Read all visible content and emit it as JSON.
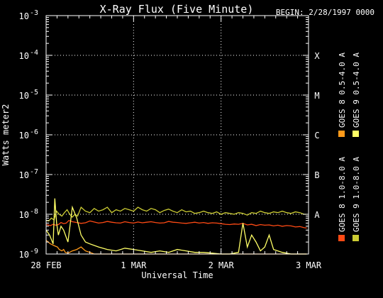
{
  "chart_data": {
    "type": "line",
    "title": "X-Ray Flux (Five Minute)",
    "begin": "BEGIN: 2/28/1997 0000",
    "ylabel": "Watts meter2",
    "xlabel": "Universal Time",
    "yscale": "log",
    "ylim": [
      1e-09,
      0.001
    ],
    "y_ticks": [
      {
        "base": "10",
        "exp": "-9"
      },
      {
        "base": "10",
        "exp": "-8"
      },
      {
        "base": "10",
        "exp": "-7"
      },
      {
        "base": "10",
        "exp": "-6"
      },
      {
        "base": "10",
        "exp": "-5"
      },
      {
        "base": "10",
        "exp": "-4"
      },
      {
        "base": "10",
        "exp": "-3"
      }
    ],
    "x_ticks": [
      "28 FEB",
      "1 MAR",
      "2 MAR",
      "3 MAR"
    ],
    "xlim": [
      "1997-02-28",
      "1997-03-03"
    ],
    "flare_classes": [
      {
        "label": "A",
        "value": 1e-08
      },
      {
        "label": "B",
        "value": 1e-07
      },
      {
        "label": "C",
        "value": 1e-06
      },
      {
        "label": "M",
        "value": 1e-05
      },
      {
        "label": "X",
        "value": 0.0001
      }
    ],
    "grid": "dotted",
    "series": [
      {
        "name": "GOES 8 1.0-8.0 A",
        "color": "#ff4a14",
        "x": [
          0,
          0.02,
          0.05,
          0.08,
          0.11,
          0.14,
          0.17,
          0.2,
          0.23,
          0.26,
          0.3,
          0.35,
          0.4,
          0.45,
          0.5,
          0.55,
          0.6,
          0.65,
          0.7,
          0.75,
          0.8,
          0.85,
          0.9,
          0.95,
          1.0,
          1.05,
          1.1,
          1.15,
          1.2,
          1.25,
          1.3,
          1.35,
          1.4,
          1.45,
          1.5,
          1.55,
          1.6,
          1.65,
          1.7,
          1.75,
          1.8,
          1.85,
          1.9,
          1.95,
          2.0,
          2.05,
          2.1,
          2.15,
          2.2,
          2.25,
          2.3,
          2.35,
          2.4,
          2.45,
          2.5,
          2.55,
          2.6,
          2.65,
          2.7,
          2.75,
          2.8,
          2.85,
          2.9,
          2.95,
          2.98
        ],
        "y": [
          5.5e-09,
          5.4e-09,
          5.2e-09,
          5.6e-09,
          5.3e-09,
          5.5e-09,
          6.2e-09,
          5.8e-09,
          6e-09,
          7e-09,
          6.5e-09,
          6.2e-09,
          5.9e-09,
          6.1e-09,
          6.8e-09,
          6.4e-09,
          6e-09,
          6.2e-09,
          6.6e-09,
          6.3e-09,
          6.1e-09,
          6e-09,
          6.5e-09,
          6.2e-09,
          6e-09,
          6.4e-09,
          6.1e-09,
          6.3e-09,
          6.5e-09,
          6.2e-09,
          6e-09,
          6.1e-09,
          6.6e-09,
          6.3e-09,
          6.2e-09,
          6e-09,
          5.9e-09,
          6.1e-09,
          6.3e-09,
          6e-09,
          6.2e-09,
          5.9e-09,
          6.1e-09,
          6e-09,
          5.8e-09,
          5.6e-09,
          5.5e-09,
          5.7e-09,
          5.6e-09,
          5.9e-09,
          5.4e-09,
          5.6e-09,
          5.2e-09,
          5.5e-09,
          5.3e-09,
          5.4e-09,
          5.1e-09,
          5.3e-09,
          5e-09,
          5.2e-09,
          5.1e-09,
          4.8e-09,
          4.9e-09,
          4.6e-09,
          4.5e-09
        ]
      },
      {
        "name": "GOES 8 0.5-4.0 A",
        "color": "#ff9a1a",
        "x": [
          0,
          0.05,
          0.1,
          0.13,
          0.15,
          0.18,
          0.2,
          0.22,
          0.25,
          0.3,
          0.35,
          0.4,
          0.45,
          0.5,
          0.55,
          0.6,
          0.7,
          0.8,
          0.9,
          1.0,
          1.1,
          1.2,
          1.3,
          1.4,
          1.5,
          1.6,
          1.7,
          1.8,
          1.9,
          2.0,
          2.1,
          2.2,
          2.3,
          2.4,
          2.5,
          2.6,
          2.7,
          2.8,
          2.9,
          2.98
        ],
        "y": [
          2.2e-09,
          1.8e-09,
          1.6e-09,
          1.5e-09,
          1.3e-09,
          1.2e-09,
          1.3e-09,
          1.1e-09,
          1.05e-09,
          1.2e-09,
          1.3e-09,
          1.5e-09,
          1.2e-09,
          1.1e-09,
          1e-09,
          1e-09,
          1e-09,
          1e-09,
          1e-09,
          1e-09,
          1e-09,
          1e-09,
          1e-09,
          1e-09,
          1e-09,
          1e-09,
          1e-09,
          1e-09,
          1e-09,
          1e-09,
          1e-09,
          1e-09,
          1e-09,
          1e-09,
          1e-09,
          1e-09,
          1e-09,
          1e-09,
          1e-09,
          1e-09
        ]
      },
      {
        "name": "GOES 9 1.0-8.0 A",
        "color": "#cccc33",
        "x": [
          0,
          0.03,
          0.06,
          0.09,
          0.12,
          0.15,
          0.18,
          0.21,
          0.24,
          0.27,
          0.3,
          0.33,
          0.36,
          0.4,
          0.45,
          0.5,
          0.55,
          0.6,
          0.65,
          0.7,
          0.75,
          0.8,
          0.85,
          0.9,
          0.95,
          1.0,
          1.05,
          1.1,
          1.15,
          1.2,
          1.25,
          1.3,
          1.35,
          1.4,
          1.45,
          1.5,
          1.55,
          1.6,
          1.65,
          1.7,
          1.75,
          1.8,
          1.85,
          1.9,
          1.95,
          2.0,
          2.05,
          2.1,
          2.15,
          2.2,
          2.25,
          2.3,
          2.35,
          2.4,
          2.45,
          2.5,
          2.55,
          2.6,
          2.65,
          2.7,
          2.75,
          2.8,
          2.85,
          2.9,
          2.95,
          2.98
        ],
        "y": [
          7e-09,
          6.8e-09,
          8e-09,
          7.2e-09,
          1.2e-08,
          1e-08,
          9e-09,
          1.1e-08,
          1.3e-08,
          1e-08,
          8.5e-09,
          1e-08,
          9e-09,
          1.5e-08,
          1.2e-08,
          1.1e-08,
          1.4e-08,
          1.2e-08,
          1.3e-08,
          1.5e-08,
          1.1e-08,
          1.3e-08,
          1.2e-08,
          1.4e-08,
          1.3e-08,
          1.2e-08,
          1.5e-08,
          1.3e-08,
          1.2e-08,
          1.4e-08,
          1.3e-08,
          1.1e-08,
          1.25e-08,
          1.35e-08,
          1.2e-08,
          1.1e-08,
          1.3e-08,
          1.15e-08,
          1.2e-08,
          1.05e-08,
          1.1e-08,
          1.2e-08,
          1.1e-08,
          1.05e-08,
          1.15e-08,
          1e-08,
          1.1e-08,
          1.05e-08,
          1e-08,
          1.1e-08,
          1.05e-08,
          9.5e-09,
          1.1e-08,
          1.05e-08,
          1.2e-08,
          1.1e-08,
          1.05e-08,
          1.15e-08,
          1.1e-08,
          1.2e-08,
          1.1e-08,
          1.05e-08,
          1.15e-08,
          1.1e-08,
          1e-08,
          1e-08
        ]
      },
      {
        "name": "GOES 9 0.5-4.0 A",
        "color": "#ffff66",
        "x": [
          0,
          0.04,
          0.08,
          0.1,
          0.12,
          0.14,
          0.17,
          0.2,
          0.25,
          0.3,
          0.35,
          0.4,
          0.45,
          0.5,
          0.6,
          0.7,
          0.8,
          0.9,
          1.0,
          1.1,
          1.2,
          1.3,
          1.4,
          1.5,
          1.6,
          1.7,
          1.8,
          1.9,
          2.0,
          2.1,
          2.2,
          2.25,
          2.3,
          2.35,
          2.4,
          2.45,
          2.5,
          2.55,
          2.6,
          2.7,
          2.8,
          2.9,
          2.98
        ],
        "y": [
          4e-09,
          3e-09,
          1.8e-09,
          2.5e-08,
          6e-09,
          3e-09,
          5e-09,
          4e-09,
          2e-09,
          1.5e-08,
          8e-09,
          3e-09,
          2e-09,
          1.8e-09,
          1.5e-09,
          1.3e-09,
          1.2e-09,
          1.4e-09,
          1.3e-09,
          1.2e-09,
          1.1e-09,
          1.2e-09,
          1.1e-09,
          1.3e-09,
          1.2e-09,
          1.1e-09,
          1.1e-09,
          1.05e-09,
          1e-09,
          1e-09,
          1.1e-09,
          6e-09,
          1.5e-09,
          3e-09,
          2e-09,
          1.2e-09,
          1.5e-09,
          3e-09,
          1.3e-09,
          1.1e-09,
          1e-09,
          1e-09,
          1e-09
        ]
      }
    ]
  }
}
